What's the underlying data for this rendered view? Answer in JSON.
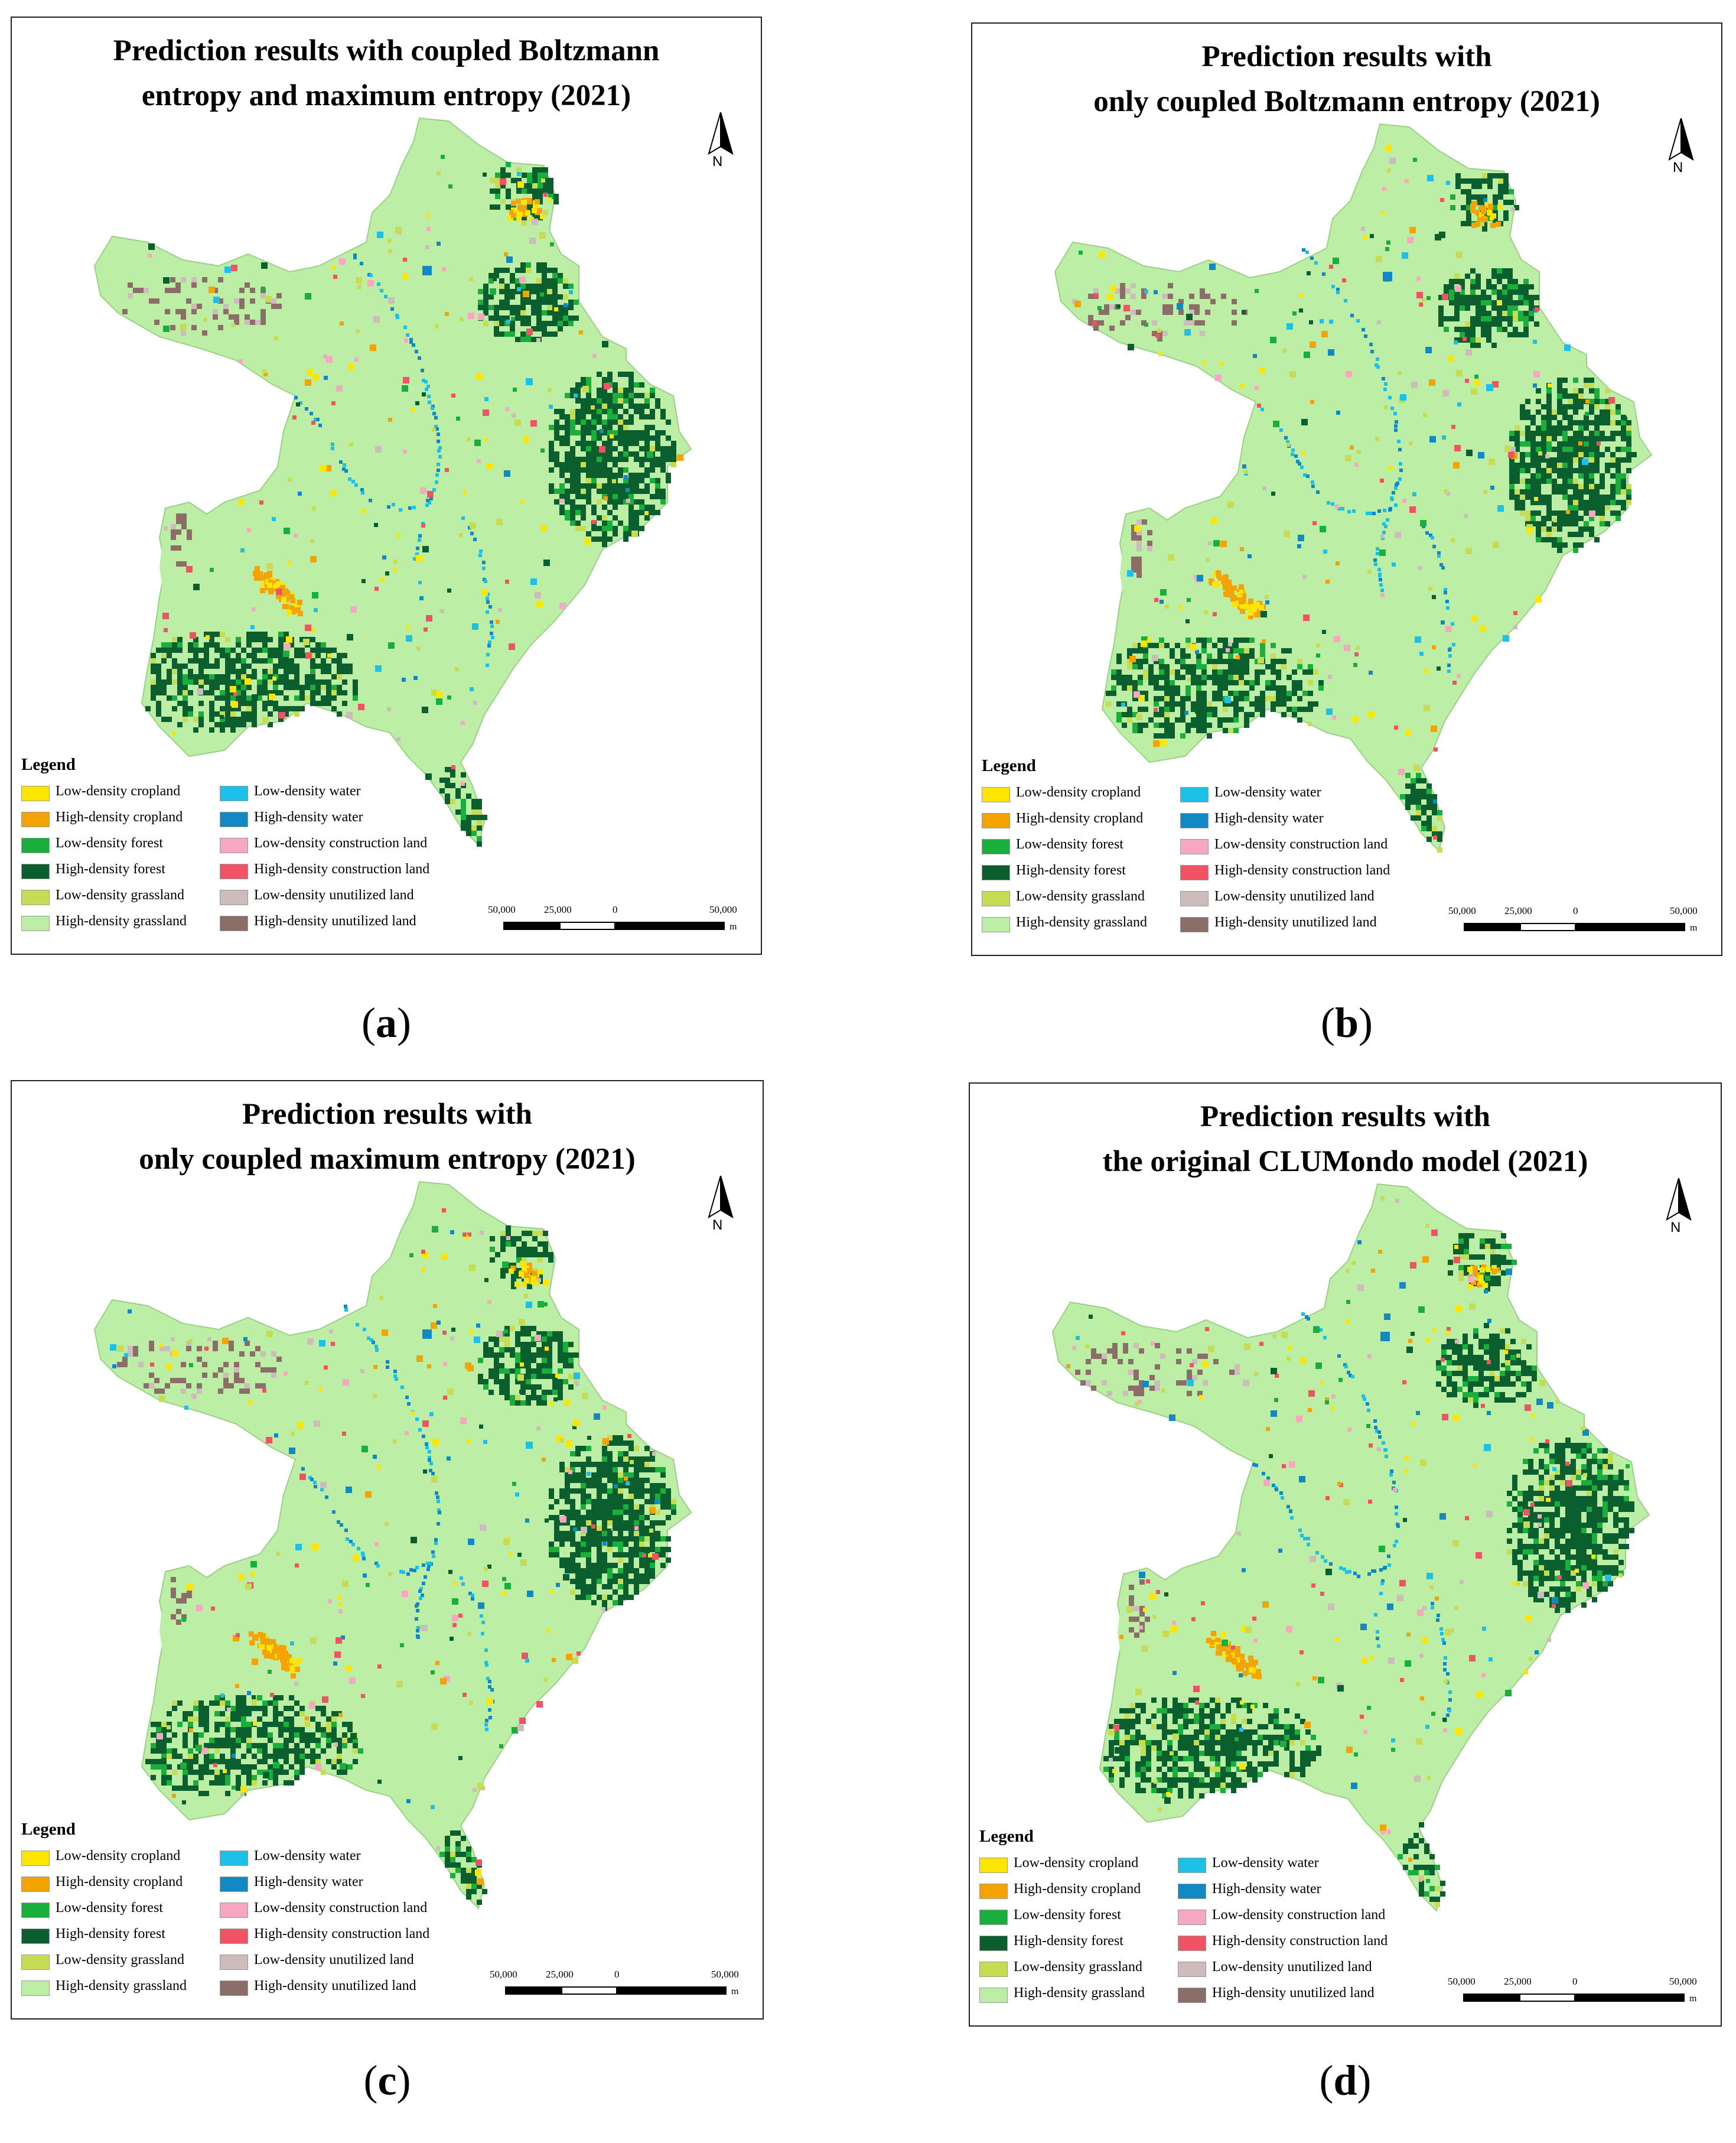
{
  "panels": [
    {
      "id": "a",
      "title_lines": [
        "Prediction results with coupled Boltzmann",
        "entropy and  maximum entropy (2021)"
      ],
      "label": "a"
    },
    {
      "id": "b",
      "title_lines": [
        "Prediction results with",
        "only coupled Boltzmann entropy (2021)"
      ],
      "label": "b"
    },
    {
      "id": "c",
      "title_lines": [
        "Prediction results with",
        "only coupled maximum entropy (2021)"
      ],
      "label": "c"
    },
    {
      "id": "d",
      "title_lines": [
        "Prediction results with",
        "the original CLUMondo model (2021)"
      ],
      "label": "d"
    }
  ],
  "north_label": "N",
  "legend": {
    "title": "Legend",
    "items": [
      {
        "label": "Low-density cropland",
        "color": "#ffe600"
      },
      {
        "label": "High-density cropland",
        "color": "#f5a300"
      },
      {
        "label": "Low-density forest",
        "color": "#1aae3c"
      },
      {
        "label": "High-density forest",
        "color": "#0b5e2e"
      },
      {
        "label": "Low-density grassland",
        "color": "#c6dc52"
      },
      {
        "label": "High-density grassland",
        "color": "#bdeea6"
      },
      {
        "label": "Low-density water",
        "color": "#1cc0e8"
      },
      {
        "label": "High-density  water",
        "color": "#1288c4"
      },
      {
        "label": "Low-density construction land",
        "color": "#f7a8c0"
      },
      {
        "label": "High-density construction land",
        "color": "#ef5364"
      },
      {
        "label": "Low-density unutilized  land",
        "color": "#cdbcbc"
      },
      {
        "label": "High-density  unutilized  land",
        "color": "#8c6e68"
      }
    ]
  },
  "scale": {
    "ticks": [
      "50,000",
      "25,000",
      "0",
      "50,000"
    ],
    "unit": "m"
  }
}
